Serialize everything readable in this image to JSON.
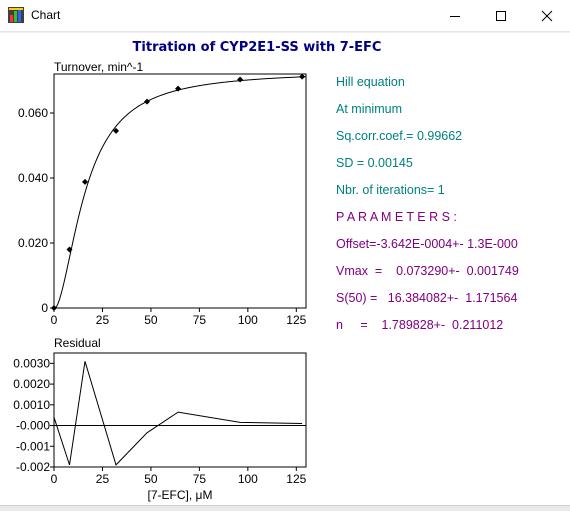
{
  "window": {
    "title": "Chart",
    "icon": "chart-app-icon",
    "controls": [
      "minimize-icon",
      "maximize-icon",
      "close-icon"
    ]
  },
  "chart_title": "Titration of CYP2E1-SS with 7-EFC",
  "colors": {
    "title": "#000080",
    "stats": "#008080",
    "params": "#800080",
    "line": "#000000"
  },
  "chart_data": [
    {
      "type": "scatter",
      "ylabel": "Turnover, min^-1",
      "xlim": [
        0,
        130
      ],
      "ylim": [
        0,
        0.072
      ],
      "x_ticks": [
        0,
        25,
        50,
        75,
        100,
        125
      ],
      "y_ticks": [
        0,
        0.02,
        0.04,
        0.06
      ],
      "y_tick_labels": [
        "0",
        "0.020",
        "0.040",
        "0.060"
      ],
      "x_tick_labels": [
        "0",
        "25",
        "50",
        "75",
        "100",
        "125"
      ],
      "points": [
        {
          "x": 0,
          "y": 0
        },
        {
          "x": 8,
          "y": 0.018
        },
        {
          "x": 16,
          "y": 0.0388
        },
        {
          "x": 32,
          "y": 0.0545
        },
        {
          "x": 48,
          "y": 0.0635
        },
        {
          "x": 64,
          "y": 0.0675
        },
        {
          "x": 96,
          "y": 0.0703
        },
        {
          "x": 128,
          "y": 0.0712
        }
      ],
      "fit": {
        "model": "Hill",
        "vmax": 0.07329,
        "s50": 16.384082,
        "n": 1.789828,
        "offset": -0.0003642
      }
    },
    {
      "type": "line",
      "title": "Residual",
      "xlabel": "[7-EFC], μM",
      "xlim": [
        0,
        130
      ],
      "ylim": [
        -0.002,
        0.0035
      ],
      "x_ticks": [
        0,
        25,
        50,
        75,
        100,
        125
      ],
      "x_tick_labels": [
        "0",
        "25",
        "50",
        "75",
        "100",
        "125"
      ],
      "y_ticks": [
        -0.002,
        -0.001,
        0,
        0.001,
        0.002,
        0.003
      ],
      "y_tick_labels": [
        "-0.002",
        "-0.001",
        "-0.000",
        "0.0010",
        "0.0020",
        "0.0030"
      ],
      "x": [
        0,
        8,
        16,
        32,
        48,
        64,
        96,
        128
      ],
      "values": [
        0.0004,
        -0.0019,
        0.0031,
        -0.0019,
        -0.00035,
        0.00065,
        0.00015,
        0.0001
      ]
    }
  ],
  "stats": {
    "line1": "Hill equation",
    "line2": "At minimum",
    "line3": "Sq.corr.coef.= 0.99662",
    "line4": "SD = 0.00145",
    "line5": "Nbr. of iterations=  1"
  },
  "params": {
    "header": "P A R A M E T E R S :",
    "offset": "Offset=-3.642E-0004+- 1.3E-000",
    "vmax": "Vmax  =    0.073290+-  0.001749",
    "s50": "S(50) =   16.384082+-  1.171564",
    "n": "n     =    1.789828+-  0.211012"
  }
}
